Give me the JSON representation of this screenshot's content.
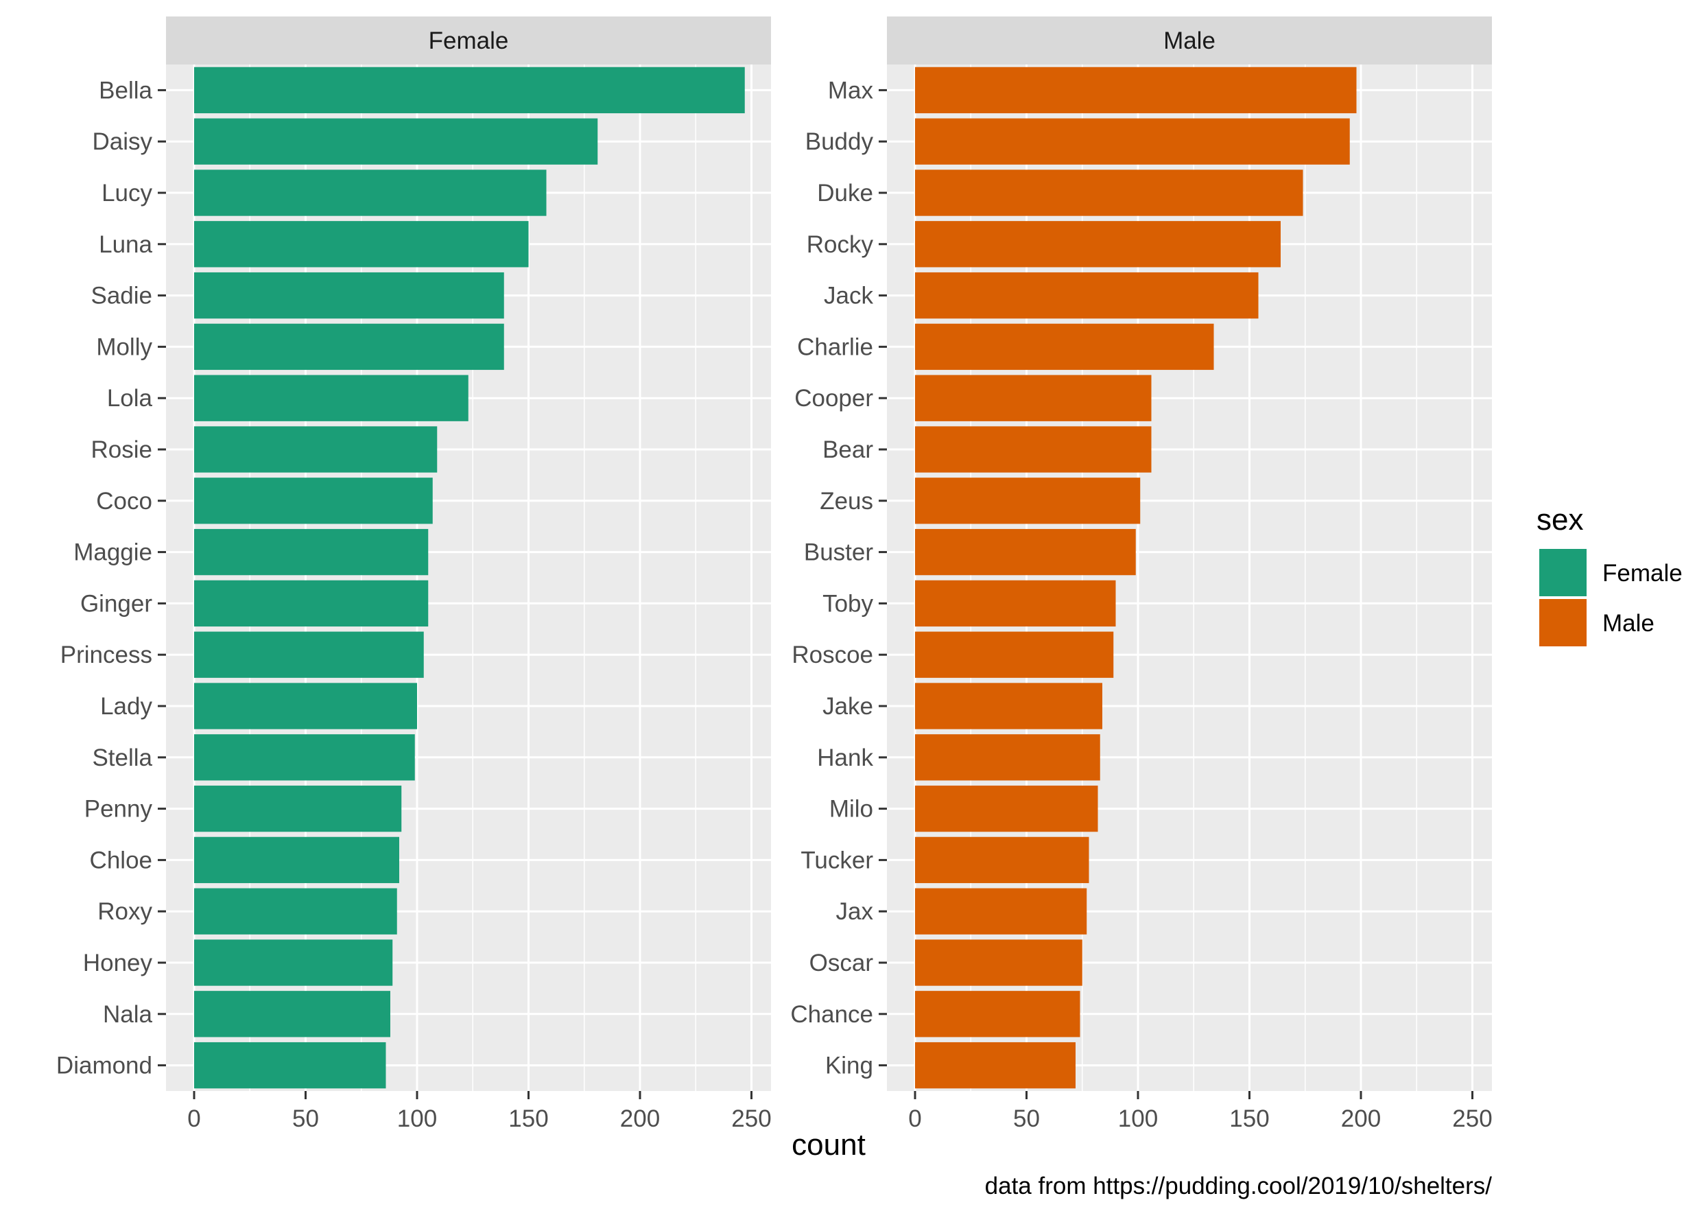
{
  "chart_data": {
    "type": "bar",
    "orientation": "horizontal",
    "facet_by": "sex",
    "x_label": "count",
    "xlim": [
      0,
      260
    ],
    "x_ticks": [
      0,
      50,
      100,
      150,
      200,
      250
    ],
    "caption": "data from https://pudding.cool/2019/10/shelters/",
    "legend": {
      "title": "sex",
      "entries": [
        {
          "label": "Female",
          "color": "#1b9e77"
        },
        {
          "label": "Male",
          "color": "#d95f02"
        }
      ]
    },
    "panels": [
      {
        "title": "Female",
        "color": "#1b9e77",
        "categories": [
          "Bella",
          "Daisy",
          "Lucy",
          "Luna",
          "Sadie",
          "Molly",
          "Lola",
          "Rosie",
          "Coco",
          "Maggie",
          "Ginger",
          "Princess",
          "Lady",
          "Stella",
          "Penny",
          "Chloe",
          "Roxy",
          "Honey",
          "Nala",
          "Diamond"
        ],
        "values": [
          247,
          181,
          158,
          150,
          139,
          139,
          123,
          109,
          107,
          105,
          105,
          103,
          100,
          99,
          93,
          92,
          91,
          89,
          88,
          86
        ]
      },
      {
        "title": "Male",
        "color": "#d95f02",
        "categories": [
          "Max",
          "Buddy",
          "Duke",
          "Rocky",
          "Jack",
          "Charlie",
          "Cooper",
          "Bear",
          "Zeus",
          "Buster",
          "Toby",
          "Roscoe",
          "Jake",
          "Hank",
          "Milo",
          "Tucker",
          "Jax",
          "Oscar",
          "Chance",
          "King"
        ],
        "values": [
          198,
          195,
          174,
          164,
          154,
          134,
          106,
          106,
          101,
          99,
          90,
          89,
          84,
          83,
          82,
          78,
          77,
          75,
          74,
          72
        ]
      }
    ]
  }
}
